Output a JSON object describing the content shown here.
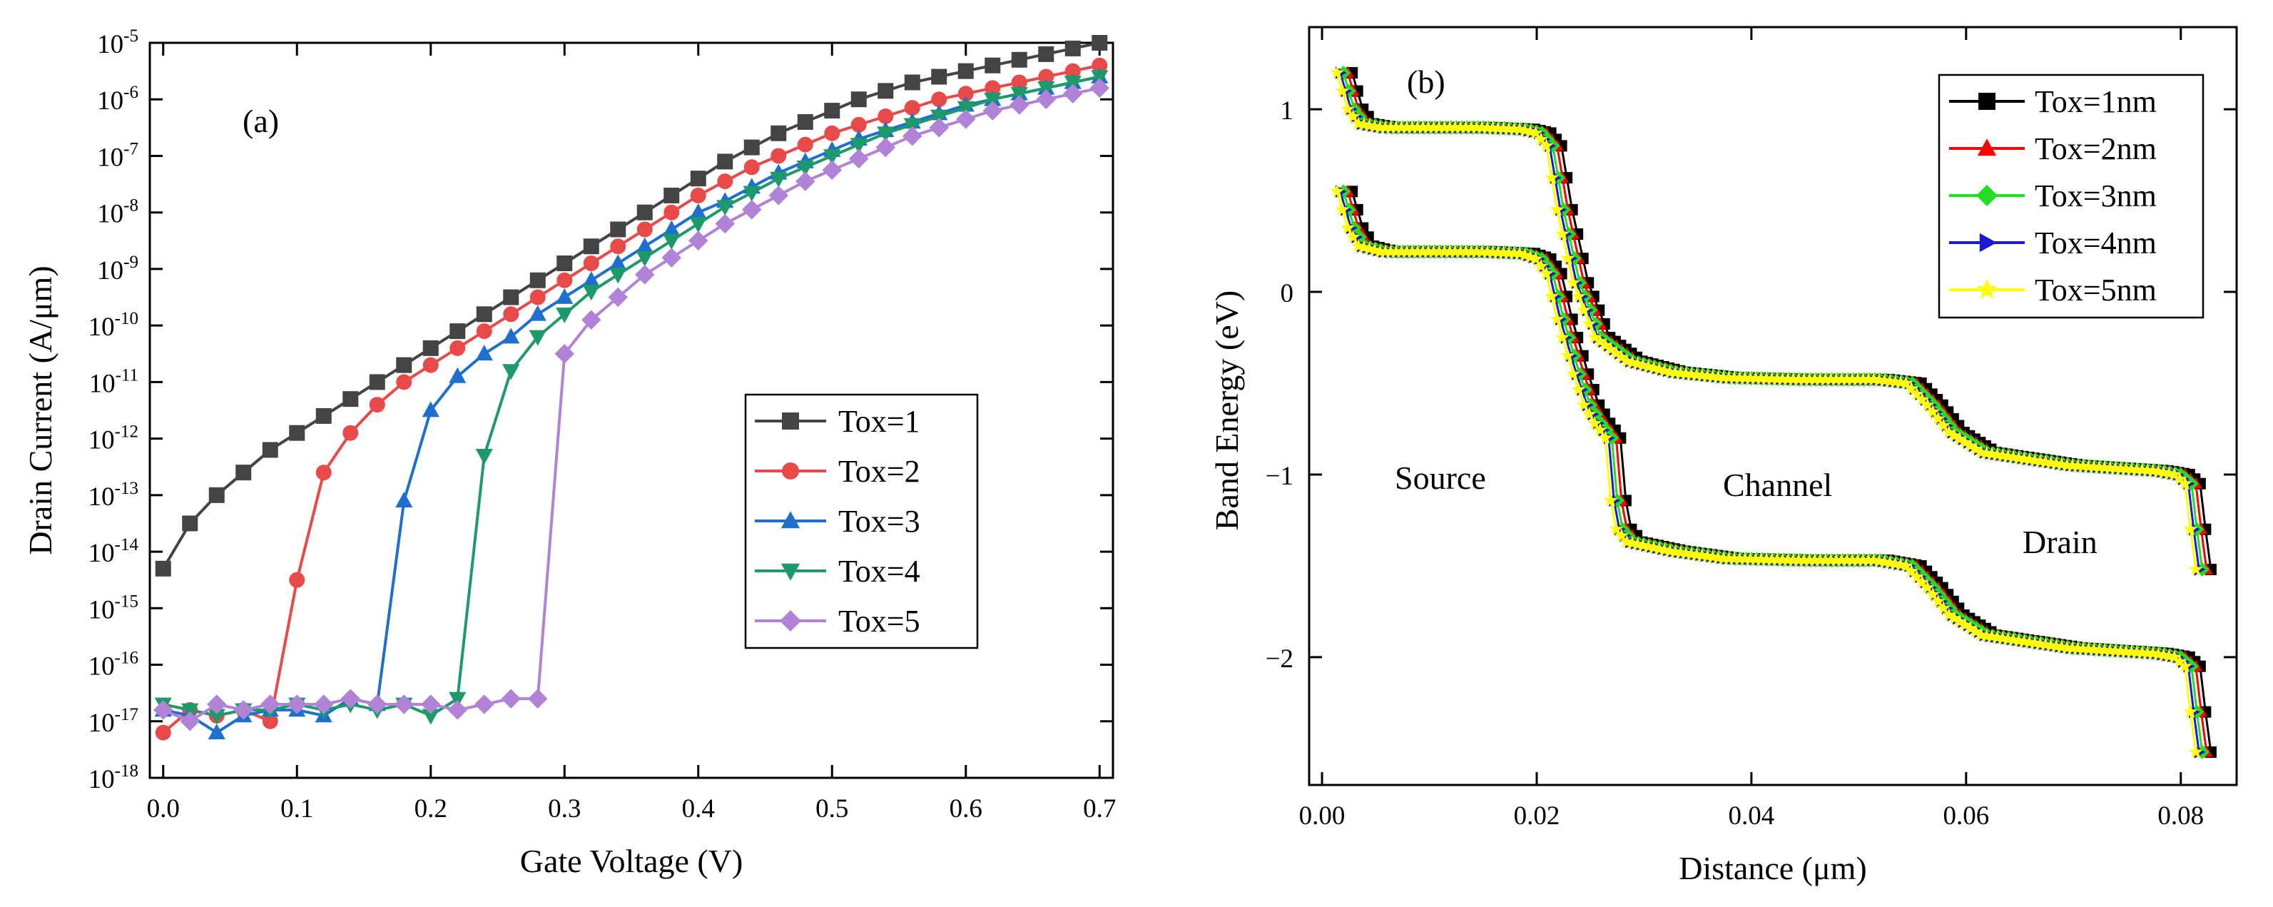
{
  "chart_data": [
    {
      "type": "line",
      "panel_label": "(a)",
      "xlabel": "Gate Voltage (V)",
      "ylabel": "Drain Current (A/μm)",
      "xlim": [
        -0.01,
        0.71
      ],
      "ylim_log10": [
        -18,
        -5
      ],
      "yscale": "log",
      "x_ticks": [
        0.0,
        0.1,
        0.2,
        0.3,
        0.4,
        0.5,
        0.6,
        0.7
      ],
      "x_tick_labels": [
        "0.0",
        "0.1",
        "0.2",
        "0.3",
        "0.4",
        "0.5",
        "0.6",
        "0.7"
      ],
      "y_tick_exponents": [
        -18,
        -17,
        -16,
        -15,
        -14,
        -13,
        -12,
        -11,
        -10,
        -9,
        -8,
        -7,
        -6,
        -5
      ],
      "y_tick_base": "10",
      "y_tick_labels": [
        "-18",
        "-17",
        "-16",
        "-15",
        "-14",
        "-13",
        "-12",
        "-11",
        "-10",
        "-9",
        "-8",
        "-7",
        "-6",
        "-5"
      ],
      "x": [
        0.0,
        0.02,
        0.04,
        0.06,
        0.08,
        0.1,
        0.12,
        0.14,
        0.16,
        0.18,
        0.2,
        0.22,
        0.24,
        0.26,
        0.28,
        0.3,
        0.32,
        0.34,
        0.36,
        0.38,
        0.4,
        0.42,
        0.44,
        0.46,
        0.48,
        0.5,
        0.52,
        0.54,
        0.56,
        0.58,
        0.6,
        0.62,
        0.64,
        0.66,
        0.68,
        0.7
      ],
      "legend_position": "lower-right",
      "series": [
        {
          "name": "Tox=1",
          "color": "#444444",
          "marker": "square",
          "log10_values": [
            -14.3,
            -13.5,
            -13.0,
            -12.6,
            -12.2,
            -11.9,
            -11.6,
            -11.3,
            -11.0,
            -10.7,
            -10.4,
            -10.1,
            -9.8,
            -9.5,
            -9.2,
            -8.9,
            -8.6,
            -8.3,
            -8.0,
            -7.7,
            -7.4,
            -7.1,
            -6.85,
            -6.6,
            -6.4,
            -6.2,
            -6.0,
            -5.85,
            -5.7,
            -5.6,
            -5.5,
            -5.4,
            -5.3,
            -5.2,
            -5.1,
            -5.0
          ]
        },
        {
          "name": "Tox=2",
          "color": "#e84a4a",
          "marker": "circle",
          "log10_values": [
            -17.2,
            -16.8,
            -16.9,
            -16.8,
            -17.0,
            -14.5,
            -12.6,
            -11.9,
            -11.4,
            -11.0,
            -10.7,
            -10.4,
            -10.1,
            -9.8,
            -9.5,
            -9.2,
            -8.9,
            -8.6,
            -8.3,
            -8.0,
            -7.7,
            -7.45,
            -7.2,
            -7.0,
            -6.8,
            -6.6,
            -6.45,
            -6.3,
            -6.15,
            -6.0,
            -5.9,
            -5.8,
            -5.7,
            -5.6,
            -5.5,
            -5.4
          ]
        },
        {
          "name": "Tox=3",
          "color": "#1f6fcf",
          "marker": "triangle-up",
          "log10_values": [
            -16.8,
            -16.9,
            -17.2,
            -16.9,
            -16.8,
            -16.8,
            -16.9,
            -16.6,
            -16.7,
            -13.1,
            -11.5,
            -10.9,
            -10.5,
            -10.2,
            -9.8,
            -9.5,
            -9.2,
            -8.9,
            -8.6,
            -8.3,
            -8.0,
            -7.8,
            -7.55,
            -7.3,
            -7.1,
            -6.9,
            -6.7,
            -6.55,
            -6.4,
            -6.25,
            -6.1,
            -6.0,
            -5.9,
            -5.8,
            -5.7,
            -5.6
          ]
        },
        {
          "name": "Tox=4",
          "color": "#1e9a6a",
          "marker": "triangle-down",
          "log10_values": [
            -16.7,
            -16.8,
            -16.9,
            -16.8,
            -16.8,
            -16.7,
            -16.8,
            -16.7,
            -16.8,
            -16.7,
            -16.9,
            -16.6,
            -12.3,
            -10.8,
            -10.2,
            -9.8,
            -9.4,
            -9.1,
            -8.8,
            -8.5,
            -8.2,
            -7.9,
            -7.65,
            -7.4,
            -7.2,
            -7.0,
            -6.8,
            -6.6,
            -6.45,
            -6.3,
            -6.15,
            -6.0,
            -5.9,
            -5.8,
            -5.7,
            -5.6
          ]
        },
        {
          "name": "Tox=5",
          "color": "#b083d6",
          "marker": "diamond",
          "log10_values": [
            -16.8,
            -17.0,
            -16.7,
            -16.8,
            -16.7,
            -16.7,
            -16.7,
            -16.6,
            -16.7,
            -16.7,
            -16.7,
            -16.8,
            -16.7,
            -16.6,
            -16.6,
            -10.5,
            -9.9,
            -9.5,
            -9.1,
            -8.8,
            -8.5,
            -8.2,
            -7.95,
            -7.7,
            -7.45,
            -7.25,
            -7.05,
            -6.85,
            -6.65,
            -6.5,
            -6.35,
            -6.2,
            -6.1,
            -6.0,
            -5.9,
            -5.8
          ]
        }
      ]
    },
    {
      "type": "line",
      "panel_label": "(b)",
      "xlabel": "Distance (μm)",
      "ylabel": "Band Energy (eV)",
      "xlim": [
        -0.0012,
        0.0852
      ],
      "ylim": [
        -2.7,
        1.45
      ],
      "x_ticks": [
        0.0,
        0.02,
        0.04,
        0.06,
        0.08
      ],
      "x_tick_labels": [
        "0.00",
        "0.02",
        "0.04",
        "0.06",
        "0.08"
      ],
      "y_ticks": [
        1,
        0,
        -1,
        -2
      ],
      "y_tick_labels": [
        "1",
        "0",
        "−1",
        "−2"
      ],
      "annotations": [
        "Source",
        "Channel",
        "Drain"
      ],
      "legend_position": "top-right",
      "series": [
        {
          "name": "Tox=1nm",
          "color": "#000000",
          "marker": "square",
          "x_shift": 0.0008
        },
        {
          "name": "Tox=2nm",
          "color": "#ff0000",
          "marker": "triangle-up",
          "x_shift": 0.0004
        },
        {
          "name": "Tox=3nm",
          "color": "#22dd22",
          "marker": "diamond",
          "x_shift": 0.0
        },
        {
          "name": "Tox=4nm",
          "color": "#1a1ad0",
          "marker": "triangle-right",
          "x_shift": -0.0003
        },
        {
          "name": "Tox=5nm",
          "color": "#ffff00",
          "marker": "star",
          "x_shift": -0.0006
        }
      ],
      "conduction_band_profile": {
        "x": [
          0.002,
          0.003,
          0.004,
          0.006,
          0.01,
          0.015,
          0.019,
          0.0205,
          0.0215,
          0.0225,
          0.024,
          0.026,
          0.029,
          0.033,
          0.038,
          0.045,
          0.052,
          0.055,
          0.057,
          0.059,
          0.062,
          0.07,
          0.078,
          0.08,
          0.081,
          0.0815,
          0.082
        ],
        "y": [
          1.2,
          1.0,
          0.92,
          0.9,
          0.9,
          0.9,
          0.89,
          0.87,
          0.8,
          0.45,
          0.05,
          -0.25,
          -0.38,
          -0.44,
          -0.47,
          -0.48,
          -0.48,
          -0.5,
          -0.62,
          -0.77,
          -0.88,
          -0.95,
          -0.98,
          -1.0,
          -1.05,
          -1.3,
          -1.52
        ]
      },
      "valence_band_profile": {
        "x": [
          0.002,
          0.003,
          0.004,
          0.006,
          0.01,
          0.015,
          0.019,
          0.0205,
          0.0215,
          0.0225,
          0.024,
          0.025,
          0.026,
          0.0268,
          0.0272,
          0.0276,
          0.028,
          0.029,
          0.033,
          0.038,
          0.045,
          0.052,
          0.055,
          0.057,
          0.059,
          0.062,
          0.07,
          0.078,
          0.08,
          0.081,
          0.0815,
          0.082
        ],
        "y": [
          0.55,
          0.35,
          0.25,
          0.22,
          0.22,
          0.22,
          0.21,
          0.18,
          0.1,
          -0.15,
          -0.45,
          -0.62,
          -0.72,
          -0.78,
          -0.82,
          -1.25,
          -1.3,
          -1.37,
          -1.42,
          -1.46,
          -1.47,
          -1.47,
          -1.5,
          -1.62,
          -1.77,
          -1.88,
          -1.95,
          -1.98,
          -2.0,
          -2.05,
          -2.3,
          -2.52
        ]
      }
    }
  ]
}
